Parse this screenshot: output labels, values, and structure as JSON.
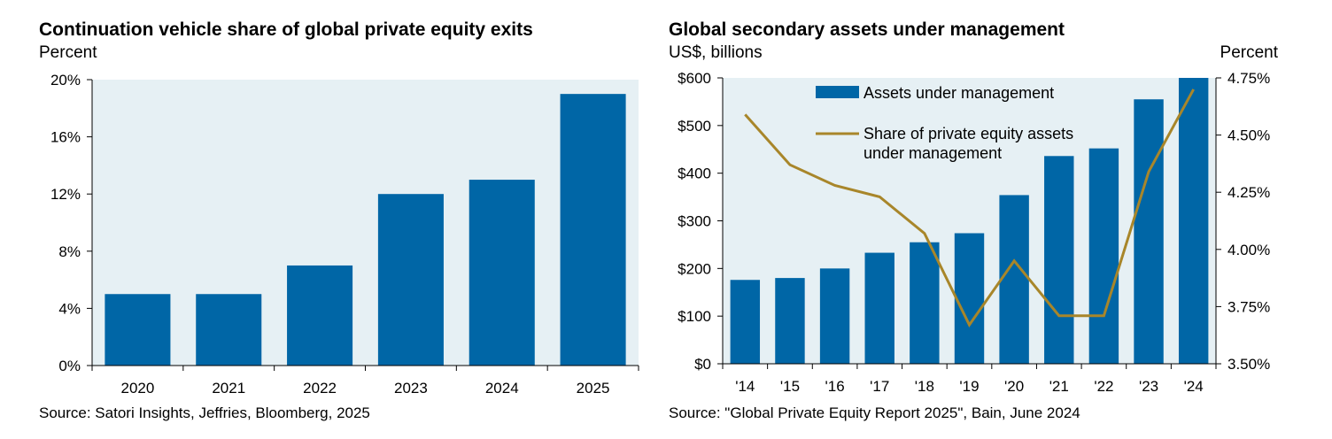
{
  "chart_data": [
    {
      "type": "bar",
      "title": "Continuation vehicle share of global private equity exits",
      "subtitle": "Percent",
      "source": "Source: Satori Insights, Jeffries, Bloomberg, 2025",
      "categories": [
        "2020",
        "2021",
        "2022",
        "2023",
        "2024",
        "2025"
      ],
      "values": [
        5,
        5,
        7,
        12,
        13,
        19
      ],
      "ylim": [
        0,
        20
      ],
      "yticks": [
        0,
        4,
        8,
        12,
        16,
        20
      ],
      "ytick_labels": [
        "0%",
        "4%",
        "8%",
        "12%",
        "16%",
        "20%"
      ],
      "xlabel": "",
      "ylabel": "Percent",
      "bar_color": "#0066A6",
      "plot_bg": "#E6F0F4"
    },
    {
      "type": "bar+line",
      "title": "Global secondary assets under management",
      "left_unit": "US$, billions",
      "right_unit": "Percent",
      "source": "Source: \"Global Private Equity Report 2025\", Bain, June 2024",
      "categories": [
        "'14",
        "'15",
        "'16",
        "'17",
        "'18",
        "'19",
        "'20",
        "'21",
        "'22",
        "'23",
        "'24"
      ],
      "bar_series": {
        "name": "Assets under management",
        "values": [
          176,
          180,
          200,
          233,
          255,
          274,
          354,
          436,
          452,
          555,
          600
        ],
        "ylim": [
          0,
          600
        ],
        "yticks": [
          0,
          100,
          200,
          300,
          400,
          500,
          600
        ],
        "ytick_labels": [
          "$0",
          "$100",
          "$200",
          "$300",
          "$400",
          "$500",
          "$600"
        ],
        "color": "#0066A6"
      },
      "line_series": {
        "name": "Share of private equity assets under management",
        "name_lines": [
          "Share of private equity assets",
          "under management"
        ],
        "values": [
          4.59,
          4.37,
          4.28,
          4.23,
          4.07,
          3.67,
          3.95,
          3.71,
          3.71,
          4.34,
          4.7
        ],
        "ylim": [
          3.5,
          4.75
        ],
        "yticks": [
          3.5,
          3.75,
          4.0,
          4.25,
          4.5,
          4.75
        ],
        "ytick_labels": [
          "3.50%",
          "3.75%",
          "4.00%",
          "4.25%",
          "4.50%",
          "4.75%"
        ],
        "color": "#A8862A"
      },
      "plot_bg": "#E6F0F4"
    }
  ]
}
